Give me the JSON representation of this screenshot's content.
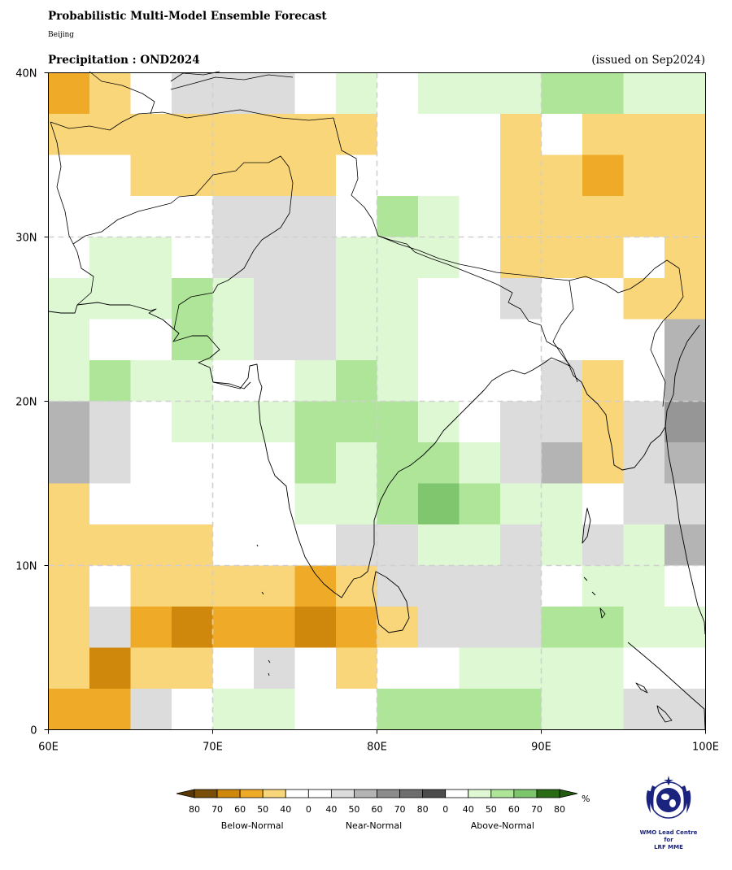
{
  "header": {
    "title": "Probabilistic Multi-Model Ensemble Forecast",
    "subtitle": "Beijing",
    "variable_title": "Precipitation : OND2024",
    "issued": "(issued on Sep2024)"
  },
  "axes": {
    "lon_ticks": [
      "60E",
      "70E",
      "80E",
      "90E",
      "100E"
    ],
    "lat_ticks": [
      "0",
      "10N",
      "20N",
      "30N",
      "40N"
    ],
    "lon_range": [
      60,
      100
    ],
    "lat_range": [
      0,
      40
    ],
    "grid_step_deg": 2.5
  },
  "legend": {
    "tick_labels": [
      "80",
      "70",
      "60",
      "50",
      "40",
      "0",
      "40",
      "50",
      "60",
      "70",
      "80",
      "0",
      "40",
      "50",
      "60",
      "70",
      "80"
    ],
    "group_labels": [
      "Below-Normal",
      "Near-Normal",
      "Above-Normal"
    ],
    "unit": "%",
    "colors": [
      "#7a4d08",
      "#cf870c",
      "#efab27",
      "#fad67a",
      "#ffffff",
      "#ffffff",
      "#dcdcdc",
      "#b3b4b3",
      "#8c8c8c",
      "#6e6e6e",
      "#4b4b4b",
      "#ffffff",
      "#dff8d4",
      "#aee598",
      "#7cc56d",
      "#2a6b15"
    ]
  },
  "palette": {
    "w": "#ffffff",
    "B5": "#fad67a",
    "B6": "#efab27",
    "B7": "#cf870c",
    "N4": "#dcdcdc",
    "N5": "#b3b4b3",
    "N6": "#959695",
    "A4": "#dff8d4",
    "A5": "#aee598",
    "A6": "#80c66f"
  },
  "logo": {
    "line1": "WMO Lead Centre for",
    "line2": "LRF MME"
  },
  "chart_data": {
    "type": "heatmap",
    "description_of_codes": "B=Below-Normal, N=Near-Normal, A=Above-Normal; digit = probability class (4=40,5=50,6=60,7=70%); w=no dominant category",
    "lon_start": 60,
    "lat_top": 40,
    "cell_deg": 2.5,
    "rows": [
      "B6 B5 w N4 N4 N4 w A4 w A4 A4 A4 A5 A5 A4 A4",
      "B5 B5 B5 B5 B5 B5 B5 B5 w w w B5 w B5 B5 B5",
      "w w B5 B5 B5 B5 B5 w w w w B5 B5 B6 B5 B5",
      "w w w w N4 N4 N4 w A5 A4 w B5 B5 B5 B5 B5",
      "w A4 A4 w N4 N4 N4 A4 A4 A4 w B5 B5 B5 w B5",
      "A4 A4 A4 A5 A4 N4 N4 A4 A4 w w N4 w w B5 B5",
      "A4 w w A5 A4 N4 N4 A4 A4 w w w w w w N5",
      "A4 A5 A4 A4 w w A4 A5 A4 w w w N4 B5 w N5",
      "N5 N4 w A4 A4 A4 A5 A5 A5 A4 w N4 N4 B5 N4 N6",
      "N5 N4 w w w w A5 A4 A5 A5 A4 N4 N5 B5 N4 N5",
      "B5 w w w w w A4 A4 A5 A6 A5 A4 A4 w N4 N4",
      "B5 B5 B5 B5 w w w N4 N4 A4 A4 N4 A4 N4 A4 N5",
      "B5 w B5 B5 B5 B5 B6 B5 N4 N4 N4 N4 w A4 A4 w",
      "B5 N4 B6 B7 B6 B6 B7 B6 B5 N4 N4 N4 A5 A5 A4 A4",
      "B5 B7 B5 B5 w N4 w B5 w w A4 A4 A4 A4 w w",
      "B6 B6 N4 w A4 A4 w w A5 A5 A5 A5 A4 A4 N4 N4"
    ]
  }
}
